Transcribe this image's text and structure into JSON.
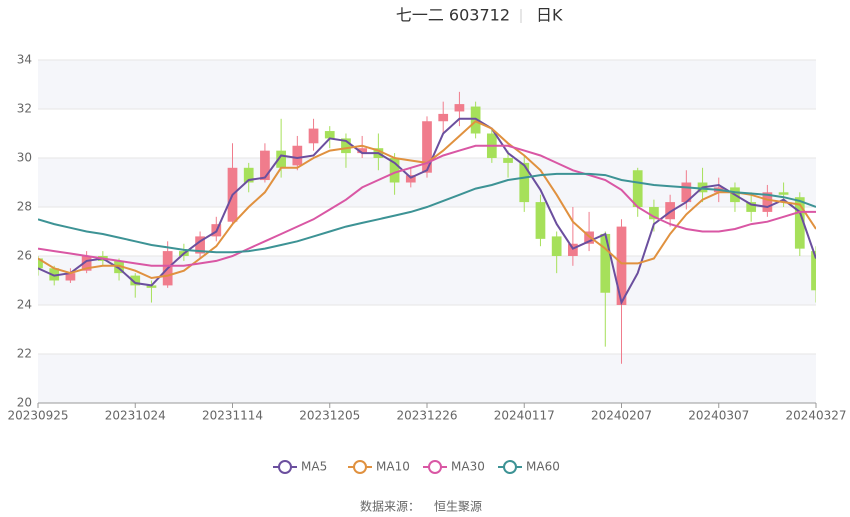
{
  "chart_data": {
    "type": "candlestick",
    "title": "七一二 603712",
    "subtitle": "日K",
    "source_label": "数据来源：",
    "source": "恒生聚源",
    "categories": [
      "20230925",
      null,
      null,
      null,
      null,
      null,
      "20231024",
      null,
      null,
      null,
      null,
      null,
      "20231114",
      null,
      null,
      null,
      null,
      null,
      "20231205",
      null,
      null,
      null,
      null,
      null,
      "20231226",
      null,
      null,
      null,
      null,
      null,
      "20240117",
      null,
      null,
      null,
      null,
      null,
      "20240207",
      null,
      null,
      null,
      null,
      null,
      "20240307",
      null,
      null,
      null,
      null,
      null,
      "20240327"
    ],
    "ohlc": [
      [
        25.9,
        25.5,
        25.2,
        26.0
      ],
      [
        25.5,
        25.0,
        24.8,
        25.6
      ],
      [
        25.0,
        25.3,
        24.9,
        25.5
      ],
      [
        25.4,
        26.0,
        25.3,
        26.2
      ],
      [
        26.0,
        25.8,
        25.6,
        26.2
      ],
      [
        25.8,
        25.3,
        25.0,
        25.9
      ],
      [
        25.2,
        24.8,
        24.3,
        25.3
      ],
      [
        24.8,
        24.7,
        24.1,
        25.0
      ],
      [
        24.8,
        26.2,
        24.7,
        26.6
      ],
      [
        26.2,
        26.0,
        25.8,
        26.5
      ],
      [
        26.1,
        26.8,
        25.9,
        27.0
      ],
      [
        26.8,
        27.3,
        26.6,
        27.6
      ],
      [
        27.4,
        29.6,
        27.3,
        30.6
      ],
      [
        29.6,
        29.0,
        28.6,
        29.8
      ],
      [
        29.1,
        30.3,
        29.0,
        30.6
      ],
      [
        30.3,
        29.6,
        29.2,
        31.6
      ],
      [
        29.7,
        30.5,
        29.5,
        30.9
      ],
      [
        30.6,
        31.2,
        30.3,
        31.6
      ],
      [
        31.1,
        30.8,
        30.4,
        31.3
      ],
      [
        30.8,
        30.2,
        29.6,
        31.0
      ],
      [
        30.2,
        30.4,
        30.0,
        30.9
      ],
      [
        30.4,
        30.0,
        29.5,
        31.0
      ],
      [
        30.0,
        29.0,
        28.5,
        30.2
      ],
      [
        29.0,
        29.3,
        28.8,
        29.6
      ],
      [
        29.4,
        31.5,
        29.2,
        31.7
      ],
      [
        31.5,
        31.8,
        31.0,
        32.3
      ],
      [
        31.9,
        32.2,
        31.3,
        32.7
      ],
      [
        32.1,
        31.0,
        30.8,
        32.3
      ],
      [
        31.0,
        30.0,
        29.8,
        31.2
      ],
      [
        30.0,
        29.8,
        29.2,
        30.3
      ],
      [
        29.8,
        28.2,
        27.8,
        30.1
      ],
      [
        28.2,
        26.7,
        26.4,
        28.5
      ],
      [
        26.8,
        26.0,
        25.3,
        27.0
      ],
      [
        26.0,
        26.5,
        25.6,
        28.0
      ],
      [
        26.5,
        27.0,
        26.2,
        27.8
      ],
      [
        26.9,
        24.5,
        22.3,
        27.0
      ],
      [
        24.0,
        27.2,
        21.6,
        27.5
      ],
      [
        29.5,
        28.0,
        27.6,
        29.6
      ],
      [
        28.0,
        27.5,
        27.0,
        28.3
      ],
      [
        27.5,
        28.2,
        27.2,
        28.5
      ],
      [
        28.2,
        29.0,
        27.9,
        29.5
      ],
      [
        29.0,
        28.6,
        28.2,
        29.6
      ],
      [
        28.6,
        28.8,
        28.2,
        29.2
      ],
      [
        28.8,
        28.2,
        27.8,
        29.0
      ],
      [
        28.2,
        27.8,
        27.4,
        28.6
      ],
      [
        27.8,
        28.6,
        27.6,
        28.9
      ],
      [
        28.6,
        28.5,
        28.0,
        29.0
      ],
      [
        28.4,
        26.3,
        26.0,
        28.6
      ],
      [
        26.2,
        24.6,
        24.1,
        26.4
      ]
    ],
    "up_color": "#f07c8c",
    "down_color": "#a6e05a",
    "series": [
      {
        "name": "MA5",
        "color": "#6b4f9e",
        "values": [
          25.5,
          25.2,
          25.3,
          25.8,
          25.9,
          25.5,
          24.9,
          24.8,
          25.5,
          26.1,
          26.6,
          27.0,
          28.5,
          29.1,
          29.2,
          30.1,
          30.0,
          30.1,
          30.8,
          30.7,
          30.2,
          30.2,
          29.8,
          29.2,
          29.5,
          31.0,
          31.6,
          31.6,
          31.2,
          30.2,
          29.7,
          28.7,
          27.3,
          26.3,
          26.6,
          26.9,
          24.1,
          25.3,
          27.3,
          27.8,
          28.2,
          28.8,
          28.9,
          28.5,
          28.1,
          28.0,
          28.3,
          27.8,
          25.9
        ]
      },
      {
        "name": "MA10",
        "color": "#e0913f",
        "values": [
          25.9,
          25.5,
          25.3,
          25.5,
          25.6,
          25.6,
          25.4,
          25.1,
          25.2,
          25.4,
          25.9,
          26.4,
          27.3,
          28.0,
          28.6,
          29.6,
          29.6,
          30.0,
          30.3,
          30.4,
          30.5,
          30.3,
          30.0,
          29.9,
          29.8,
          30.3,
          30.9,
          31.5,
          31.2,
          30.6,
          30.1,
          29.5,
          28.5,
          27.4,
          26.8,
          26.3,
          25.7,
          25.7,
          25.9,
          26.9,
          27.7,
          28.3,
          28.6,
          28.6,
          28.5,
          28.3,
          28.2,
          28.1,
          27.1
        ]
      },
      {
        "name": "MA30",
        "color": "#d957a4",
        "values": [
          26.3,
          26.2,
          26.1,
          26.0,
          25.9,
          25.8,
          25.7,
          25.6,
          25.6,
          25.6,
          25.7,
          25.8,
          26.0,
          26.3,
          26.6,
          26.9,
          27.2,
          27.5,
          27.9,
          28.3,
          28.8,
          29.1,
          29.4,
          29.6,
          29.8,
          30.1,
          30.3,
          30.5,
          30.5,
          30.5,
          30.3,
          30.1,
          29.8,
          29.5,
          29.3,
          29.1,
          28.7,
          28.0,
          27.6,
          27.3,
          27.1,
          27.0,
          27.0,
          27.1,
          27.3,
          27.4,
          27.6,
          27.8,
          27.8
        ]
      },
      {
        "name": "MA60",
        "color": "#3d9395",
        "values": [
          27.5,
          27.3,
          27.15,
          27.0,
          26.9,
          26.75,
          26.6,
          26.45,
          26.35,
          26.25,
          26.2,
          26.15,
          26.15,
          26.2,
          26.3,
          26.45,
          26.6,
          26.8,
          27.0,
          27.2,
          27.35,
          27.5,
          27.65,
          27.8,
          28.0,
          28.25,
          28.5,
          28.75,
          28.9,
          29.1,
          29.2,
          29.3,
          29.35,
          29.35,
          29.35,
          29.3,
          29.1,
          29.0,
          28.9,
          28.85,
          28.8,
          28.75,
          28.7,
          28.6,
          28.55,
          28.5,
          28.4,
          28.25,
          28.0
        ]
      }
    ],
    "ylim": [
      20,
      34
    ],
    "yticks": [
      20,
      22,
      24,
      26,
      28,
      30,
      32,
      34
    ],
    "grid": true
  }
}
